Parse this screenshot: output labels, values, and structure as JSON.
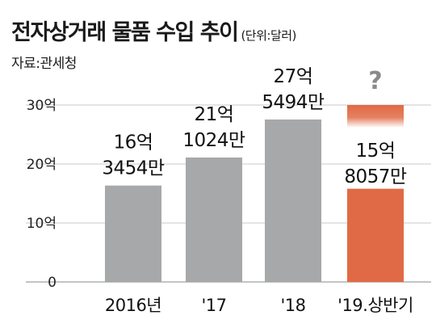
{
  "header": {
    "title": "전자상거래 물품 수입 추이",
    "unit": "(단위:달러)",
    "source": "자료:관세청"
  },
  "chart_data": {
    "type": "bar",
    "categories": [
      "2016년",
      "'17",
      "'18",
      "'19.상반기"
    ],
    "values": [
      1634540000,
      2110240000,
      2754940000,
      1580570000
    ],
    "value_labels": [
      [
        "16억",
        "3454만"
      ],
      [
        "21억",
        "1024만"
      ],
      [
        "27억",
        "5494만"
      ],
      [
        "15억",
        "8057만"
      ]
    ],
    "yticks": [
      "0",
      "10억",
      "20억",
      "30억"
    ],
    "ylim": [
      0,
      3000000000
    ],
    "highlight_annotation": "?",
    "colors": {
      "bar": "#a7a8aa",
      "highlight": "#e06a45",
      "grid": "#c8c8c8"
    }
  }
}
